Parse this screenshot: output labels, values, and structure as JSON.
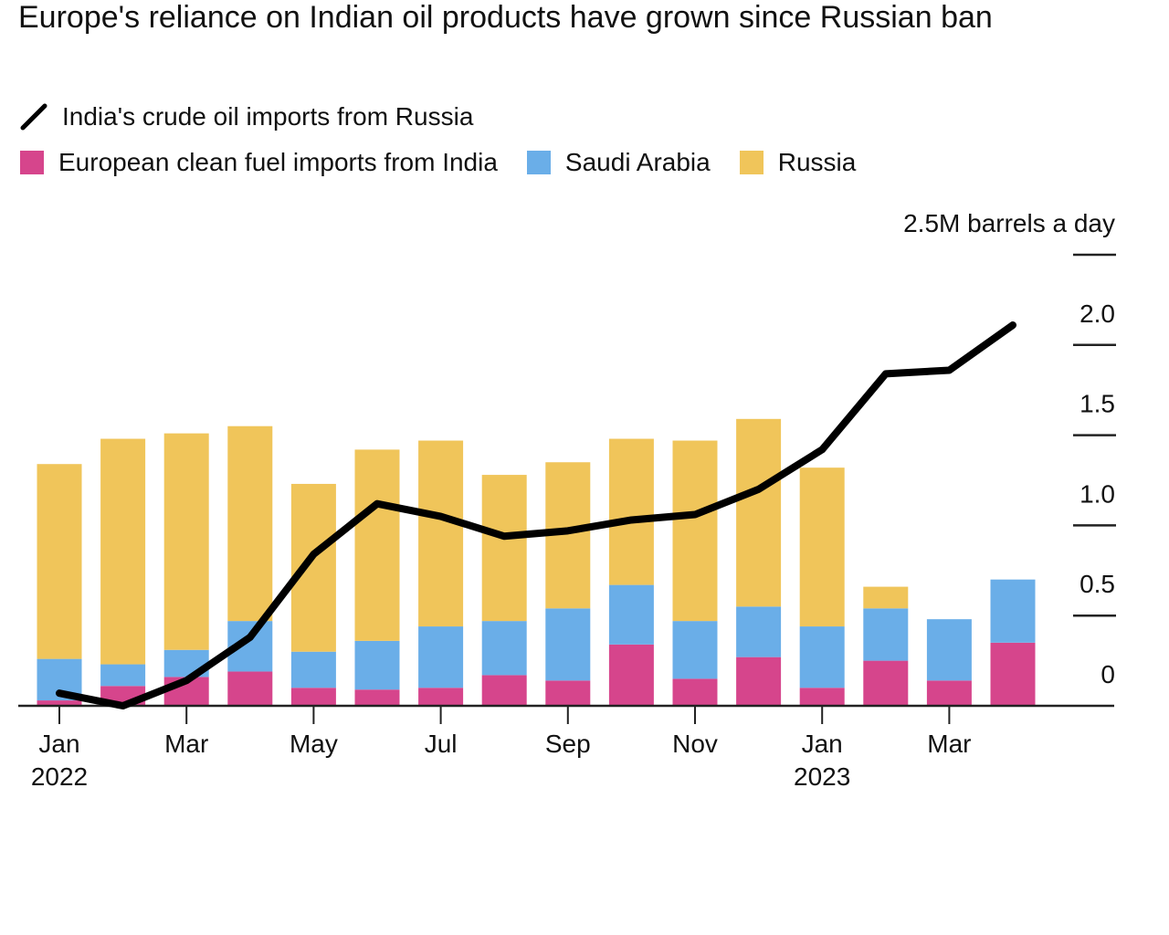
{
  "chart_data": {
    "type": "bar",
    "title": "Europe's reliance on Indian oil products have grown since Russian ban",
    "categories": [
      "Jan 2022",
      null,
      "Mar",
      null,
      "May",
      null,
      "Jul",
      null,
      "Sep",
      null,
      "Nov",
      null,
      "Jan 2023",
      null,
      "Mar",
      null
    ],
    "series": [
      {
        "name": "India's crude oil imports from Russia",
        "type": "line",
        "color": "#000000",
        "values": [
          0.07,
          0.0,
          0.14,
          0.38,
          0.84,
          1.12,
          1.05,
          0.94,
          0.97,
          1.03,
          1.06,
          1.2,
          1.42,
          1.84,
          1.86,
          2.11
        ]
      },
      {
        "name": "European clean fuel imports from India",
        "type": "bar",
        "color": "#d6458c",
        "values": [
          0.03,
          0.11,
          0.16,
          0.19,
          0.1,
          0.09,
          0.1,
          0.17,
          0.14,
          0.34,
          0.15,
          0.27,
          0.1,
          0.25,
          0.14,
          0.35
        ]
      },
      {
        "name": "Saudi Arabia",
        "type": "bar",
        "color": "#6aaee8",
        "values": [
          0.23,
          0.12,
          0.15,
          0.28,
          0.2,
          0.27,
          0.34,
          0.3,
          0.4,
          0.33,
          0.32,
          0.28,
          0.34,
          0.29,
          0.34,
          0.35
        ]
      },
      {
        "name": "Russia",
        "type": "bar",
        "color": "#f0c55a",
        "values": [
          1.08,
          1.25,
          1.2,
          1.08,
          0.93,
          1.06,
          1.03,
          0.81,
          0.81,
          0.81,
          1.0,
          1.04,
          0.88,
          0.12,
          0,
          0
        ]
      }
    ],
    "ylim": [
      0,
      2.5
    ],
    "yticks": [
      0,
      0.5,
      {
        "value": 1,
        "label": "1.0"
      },
      1.5,
      {
        "value": 2,
        "label": "2.0"
      },
      {
        "value": 2.5,
        "label": "2.5M barrels a day"
      }
    ],
    "stacked": true
  }
}
